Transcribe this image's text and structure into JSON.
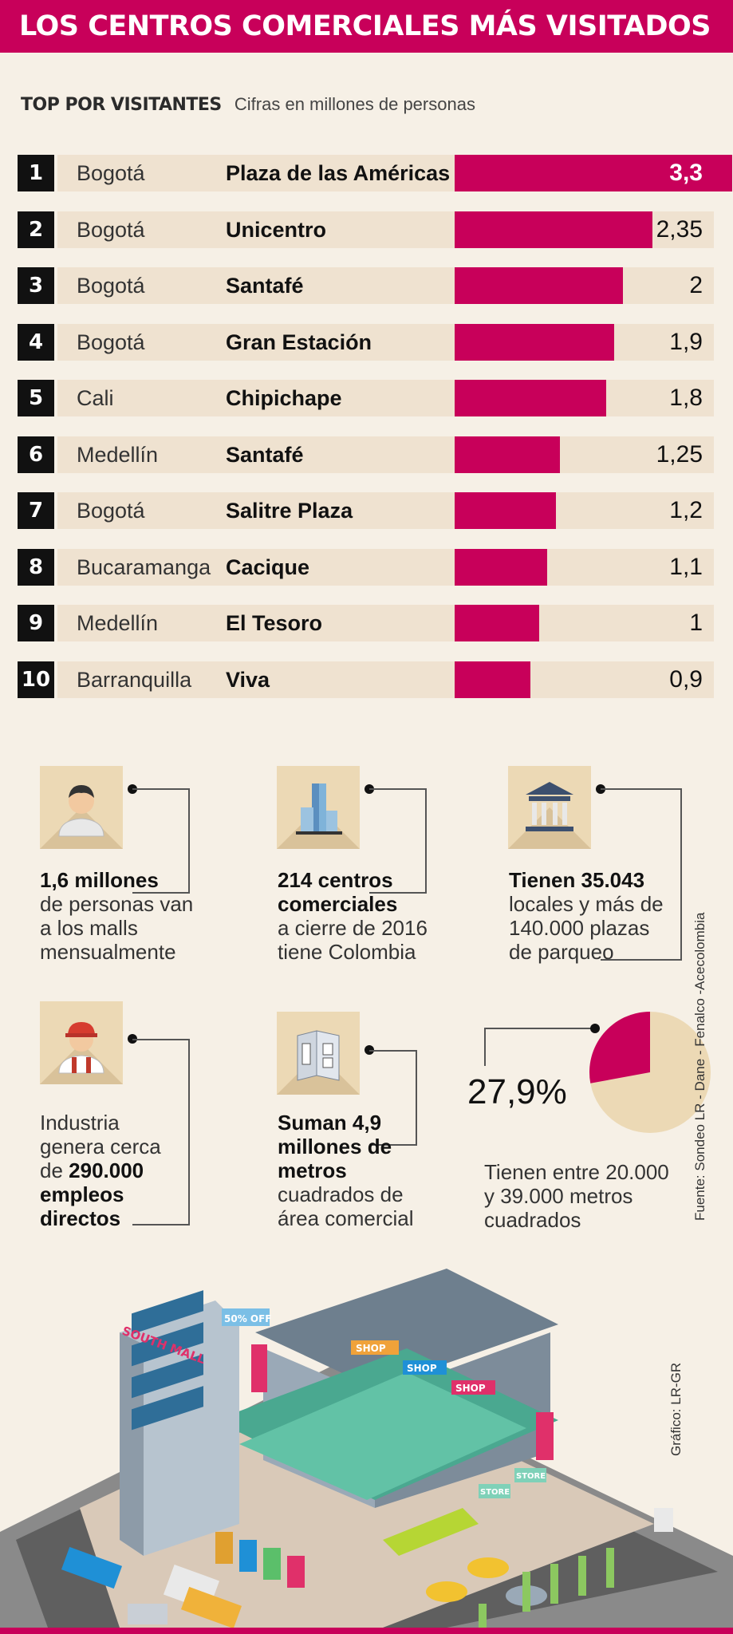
{
  "header": {
    "title": "LOS CENTROS COMERCIALES MÁS VISITADOS"
  },
  "subhead": {
    "title": "TOP POR VISITANTES",
    "note": "Cifras en millones de personas"
  },
  "chart_data": {
    "type": "bar",
    "title": "TOP POR VISITANTES",
    "subtitle": "Cifras en millones de personas",
    "rows": [
      {
        "rank": "1",
        "city": "Bogotá",
        "mall": "Plaza de las Américas",
        "value": 3.3,
        "label": "3,3"
      },
      {
        "rank": "2",
        "city": "Bogotá",
        "mall": "Unicentro",
        "value": 2.35,
        "label": "2,35"
      },
      {
        "rank": "3",
        "city": "Bogotá",
        "mall": "Santafé",
        "value": 2,
        "label": "2"
      },
      {
        "rank": "4",
        "city": "Bogotá",
        "mall": "Gran Estación",
        "value": 1.9,
        "label": "1,9"
      },
      {
        "rank": "5",
        "city": "Cali",
        "mall": "Chipichape",
        "value": 1.8,
        "label": "1,8"
      },
      {
        "rank": "6",
        "city": "Medellín",
        "mall": "Santafé",
        "value": 1.25,
        "label": "1,25"
      },
      {
        "rank": "7",
        "city": "Bogotá",
        "mall": "Salitre Plaza",
        "value": 1.2,
        "label": "1,2"
      },
      {
        "rank": "8",
        "city": "Bucaramanga",
        "mall": "Cacique",
        "value": 1.1,
        "label": "1,1"
      },
      {
        "rank": "9",
        "city": "Medellín",
        "mall": "El Tesoro",
        "value": 1,
        "label": "1"
      },
      {
        "rank": "10",
        "city": "Barranquilla",
        "mall": "Viva",
        "value": 0.9,
        "label": "0,9"
      }
    ],
    "bar_color": "#c8005a",
    "pie": {
      "value": 27.9,
      "label": "27,9%",
      "color_slice": "#c8005a",
      "color_rest": "#ecd9b5"
    }
  },
  "stats": {
    "s1": {
      "bold": "1,6 millones",
      "l2": "de personas van",
      "l3": "a los malls",
      "l4": "mensualmente"
    },
    "s2": {
      "bold1": "214 centros",
      "bold2": "comerciales",
      "l3": "a cierre de 2016",
      "l4": "tiene Colombia"
    },
    "s3": {
      "bold": "Tienen 35.043",
      "l2": "locales y más de",
      "l3": "140.000 plazas",
      "l4": "de parqueo"
    },
    "s4": {
      "l1": "Industria",
      "l2": "genera cerca",
      "l3a": "de ",
      "l3b": "290.000",
      "l4": "empleos",
      "l5": "directos"
    },
    "s5": {
      "b1": "Suman 4,9",
      "b2": "millones de",
      "b3": "metros",
      "l4": "cuadrados de",
      "l5": "área comercial"
    },
    "s6": {
      "l1": "Tienen entre 20.000",
      "l2": "y 39.000 metros",
      "l3": "cuadrados"
    }
  },
  "illustration": {
    "mall_sign": "SOUTH MALL",
    "offer_sign": "50% OFF",
    "shop_sign": "SHOP",
    "store_sign": "STORE"
  },
  "credits": {
    "grafico": "Gráfico: LR-GR",
    "fuente": "Fuente: Sondeo LR - Dane - Fenalco -Acecolombia"
  }
}
